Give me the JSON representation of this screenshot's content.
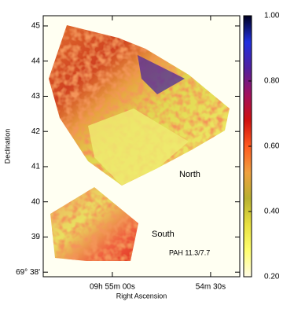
{
  "chart_data": {
    "type": "image",
    "x_label": "Right Ascension",
    "y_label": "Declination",
    "xlim": [
      3321.1,
      3261.1
    ],
    "xticks": [
      {
        "value": 3300,
        "label": "09h 55m 00s"
      },
      {
        "value": 3270,
        "label": "54m 30s"
      }
    ],
    "ylim": [
      37.87,
      45.29
    ],
    "yticks": [
      45,
      44,
      43,
      42,
      41,
      40,
      39,
      {
        "value": 38,
        "label": "69° 38'"
      }
    ],
    "clim": [
      0.2,
      1.0
    ],
    "cticks": [
      {
        "value": 1,
        "label": "1.00"
      },
      {
        "value": 0.8,
        "label": "0.80"
      },
      {
        "value": 0.6,
        "label": "0.60"
      },
      {
        "value": 0.4,
        "label": "0.40"
      },
      {
        "value": 0.2,
        "label": "0.20"
      }
    ],
    "colormap": [
      "#fffbe6",
      "#ffff70",
      "#e8e040",
      "#b8b030",
      "#f0a040",
      "#ff5a20",
      "#d01010",
      "#a01060",
      "#5020a0",
      "#2030e0",
      "#000020"
    ],
    "annotations": [
      "North",
      "South",
      "PAH 11.3/7.7"
    ]
  }
}
